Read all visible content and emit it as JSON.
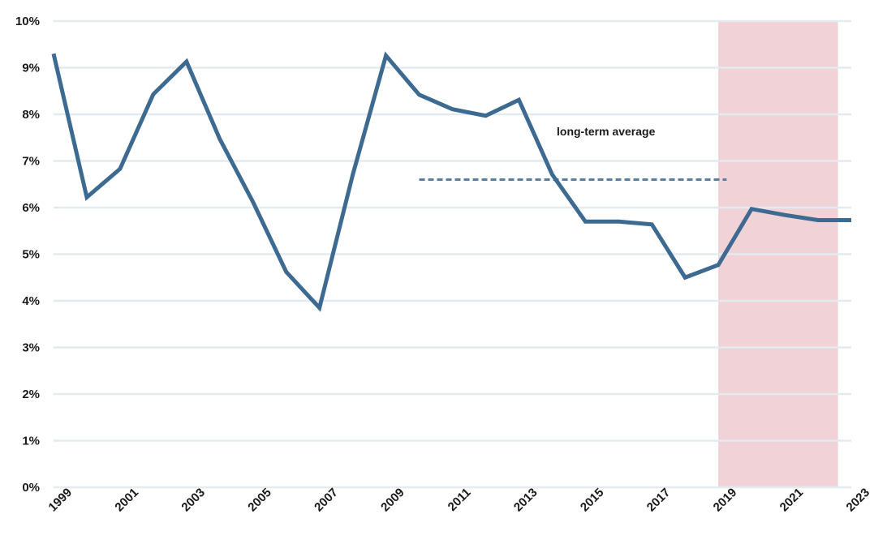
{
  "chart_data": {
    "type": "line",
    "title": "",
    "xlabel": "",
    "ylabel": "",
    "x": [
      1999,
      2000,
      2001,
      2002,
      2003,
      2004,
      2005,
      2006,
      2007,
      2008,
      2009,
      2010,
      2011,
      2012,
      2013,
      2014,
      2015,
      2016,
      2017,
      2018,
      2019,
      2020,
      2021,
      2022,
      2023
    ],
    "series": [
      {
        "values": [
          9.3,
          6.22,
          6.83,
          8.43,
          9.13,
          7.47,
          6.12,
          4.62,
          3.85,
          6.7,
          9.26,
          8.42,
          8.11,
          7.97,
          8.31,
          6.71,
          5.7,
          5.7,
          5.64,
          4.5,
          4.77,
          5.97,
          5.84,
          5.73,
          5.73
        ],
        "color": "#3d6a91"
      }
    ],
    "x_ticks": [
      "1999",
      "2001",
      "2003",
      "2005",
      "2007",
      "2009",
      "2011",
      "2013",
      "2015",
      "2017",
      "2019",
      "2021",
      "2023"
    ],
    "y_ticks": [
      "0%",
      "1%",
      "2%",
      "3%",
      "4%",
      "5%",
      "6%",
      "7%",
      "8%",
      "9%",
      "10%"
    ],
    "ylim": [
      0,
      10
    ],
    "xlim": [
      1999,
      2023
    ],
    "grid": true,
    "reference_line": {
      "label": "long-term average",
      "value": 6.6,
      "x_start": 2010,
      "x_end": 2019.25,
      "style": "dashed",
      "color": "#5a7f9e"
    },
    "shaded_region": {
      "x_start": 2019,
      "x_end": 2022.6,
      "color": "#e8b4bd"
    },
    "grid_color": "#e3eaf0"
  }
}
